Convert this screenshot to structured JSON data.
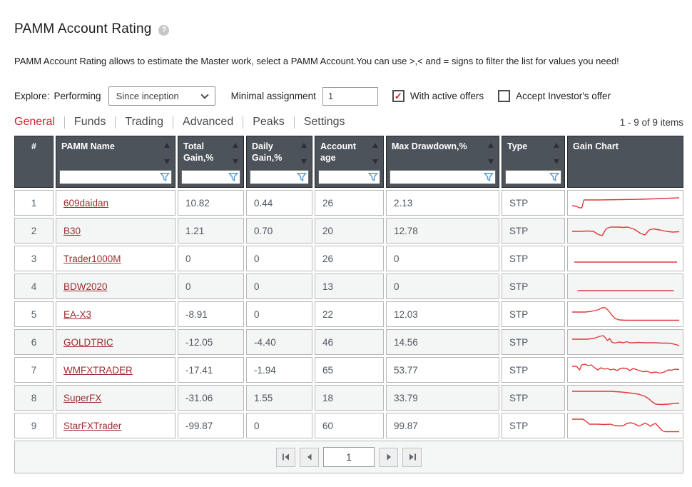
{
  "page": {
    "title": "PAMM Account Rating",
    "help_glyph": "?",
    "description": "PAMM Account Rating allows to estimate the Master work, select a PAMM Account.You can use >,< and = signs to filter the list for values you need!",
    "items_count": "1 - 9 of 9 items"
  },
  "filters": {
    "explore_label": "Explore:",
    "explore_mode": "Performing",
    "period_selected": "Since inception",
    "minimal_assignment_label": "Minimal assignment",
    "minimal_assignment_value": "1",
    "with_active_offers_label": "With active offers",
    "with_active_offers_checked": true,
    "accept_investors_offer_label": "Accept Investor's offer",
    "accept_investors_offer_checked": false,
    "check_glyph": "✓"
  },
  "tabs": [
    {
      "label": "General",
      "active": true
    },
    {
      "label": "Funds",
      "active": false
    },
    {
      "label": "Trading",
      "active": false
    },
    {
      "label": "Advanced",
      "active": false
    },
    {
      "label": "Peaks",
      "active": false
    },
    {
      "label": "Settings",
      "active": false
    }
  ],
  "table": {
    "columns": [
      {
        "label": "#",
        "key": "num",
        "sortable": false,
        "filterable": false
      },
      {
        "label": "PAMM Name",
        "key": "name",
        "sortable": true,
        "filterable": true
      },
      {
        "label": "Total Gain,%",
        "key": "total_gain",
        "sortable": true,
        "filterable": true
      },
      {
        "label": "Daily Gain,%",
        "key": "daily_gain",
        "sortable": true,
        "filterable": true
      },
      {
        "label": "Account age",
        "key": "account_age",
        "sortable": true,
        "filterable": true
      },
      {
        "label": "Max Drawdown,%",
        "key": "max_drawdown",
        "sortable": true,
        "filterable": true
      },
      {
        "label": "Type",
        "key": "type",
        "sortable": true,
        "filterable": true
      },
      {
        "label": "Gain Chart",
        "key": "spark",
        "sortable": false,
        "filterable": false
      }
    ],
    "rows": [
      {
        "num": "1",
        "name": "609daidan",
        "total_gain": "10.82",
        "daily_gain": "0.44",
        "account_age": "26",
        "max_drawdown": "2.13",
        "type": "STP",
        "spark": "0,19 4,20 7,22 9,22 11,11 25,11 45,10.5 65,10 85,9 100,8"
      },
      {
        "num": "2",
        "name": "B30",
        "total_gain": "1.21",
        "daily_gain": "0.70",
        "account_age": "20",
        "max_drawdown": "12.78",
        "type": "STP",
        "spark": "0,16 8,16 14,15.5 20,16 24,20 28,22 32,12 36,10 44,10 48,10.5 52,10 58,13 64,19 68,21 72,14 76,12.5 82,14 88,16 94,17 100,16.5"
      },
      {
        "num": "3",
        "name": "Trader1000M",
        "total_gain": "0",
        "daily_gain": "0",
        "account_age": "26",
        "max_drawdown": "0",
        "type": "STP",
        "spark": "2,20 98,20"
      },
      {
        "num": "4",
        "name": "BDW2020",
        "total_gain": "0",
        "daily_gain": "0",
        "account_age": "13",
        "max_drawdown": "0",
        "type": "STP",
        "spark": "5,21 95,21"
      },
      {
        "num": "5",
        "name": "EA-X3",
        "total_gain": "-8.91",
        "daily_gain": "0",
        "account_age": "22",
        "max_drawdown": "12.03",
        "type": "STP",
        "spark": "0,12 12,12 18,11 24,9 28,6 31,6 34,10 37,16 40,21 44,23 50,23.5 100,23.5"
      },
      {
        "num": "6",
        "name": "GOLDTRIC",
        "total_gain": "-12.05",
        "daily_gain": "-4.40",
        "account_age": "46",
        "max_drawdown": "14.56",
        "type": "STP",
        "spark": "0,11 14,11 20,10 26,7 29,6 31,9 33,13 35,10 37,15 40,16.5 44,15 48,16 51,14.5 54,16 58,16 62,15.5 66,16 72,16 78,16 84,16.5 90,16.5 94,17.5 98,19 100,20"
      },
      {
        "num": "7",
        "name": "WMFXTRADER",
        "total_gain": "-17.41",
        "daily_gain": "-1.94",
        "account_age": "65",
        "max_drawdown": "53.77",
        "type": "STP",
        "spark": "0,10 4,10 7,15 9,8 12,7 15,9 18,8 21,12 24,15 27,12 30,14 33,13 36,15 39,14 42,16 45,13 48,12.5 51,13 54,16 57,13 60,14.5 63,16 66,17.5 70,17 74,19 78,18 82,19.5 86,18 90,15 93,15.5 96,14 100,14.5"
      },
      {
        "num": "8",
        "name": "SuperFX",
        "total_gain": "-31.06",
        "daily_gain": "1.55",
        "account_age": "18",
        "max_drawdown": "33.79",
        "type": "STP",
        "spark": "0,6 36,6 46,7 55,8.5 62,10 68,13 72,17 75,21 78,24 84,24.5 90,24 95,23 100,22.5"
      },
      {
        "num": "9",
        "name": "StarFXTrader",
        "total_gain": "-99.87",
        "daily_gain": "0",
        "account_age": "60",
        "max_drawdown": "99.87",
        "type": "STP",
        "spark": "0,6 10,6 13,9 16,13 24,13 30,13.5 36,13 40,15 44,15.5 48,15 51,12 55,11 59,13 62,15.5 65,14 68,11.5 71,13.5 73,16 76,13 78,12 81,17 84,22 87,23.5 100,23.5"
      }
    ]
  },
  "pagination": {
    "page_value": "1",
    "first_icon": "first-page-icon",
    "prev_icon": "previous-page-icon",
    "next_icon": "next-page-icon",
    "last_icon": "last-page-icon"
  },
  "colors": {
    "accent_red": "#c9242b",
    "link_red": "#9f2b2f",
    "rss_red": "#d8232a",
    "spark_red": "#e03a3a",
    "header_bg": "#4d535a",
    "funnel_blue": "#4d9fd6"
  }
}
